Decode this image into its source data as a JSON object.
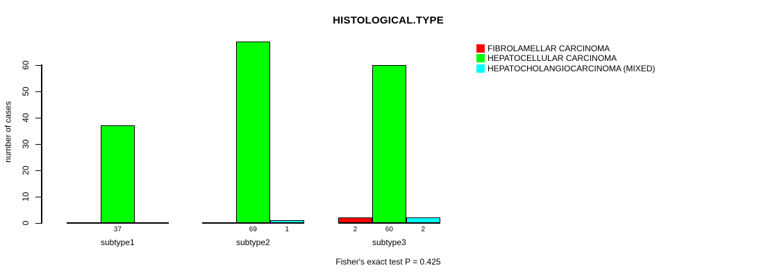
{
  "chart_data": {
    "type": "bar",
    "title": "HISTOLOGICAL.TYPE",
    "ylabel": "number of cases",
    "xlabel": "",
    "categories": [
      "subtype1",
      "subtype2",
      "subtype3"
    ],
    "series": [
      {
        "name": "FIBROLAMELLAR CARCINOMA",
        "color": "#ff0000",
        "values": [
          0,
          0,
          2
        ]
      },
      {
        "name": "HEPATOCELLULAR CARCINOMA",
        "color": "#00ff00",
        "values": [
          37,
          69,
          60
        ]
      },
      {
        "name": "HEPATOCHOLANGIOCARCINOMA (MIXED)",
        "color": "#00ffff",
        "values": [
          0,
          1,
          2
        ]
      }
    ],
    "yticks": [
      0,
      10,
      20,
      30,
      40,
      50,
      60
    ],
    "ylim": [
      0,
      69
    ],
    "grid": false,
    "legend_position": "right",
    "bar_value_labels": "non-zero values printed below baseline",
    "annotation": "Fisher's exact test P = 0.425",
    "axis_color": "#000000",
    "background": "#ffffff",
    "text_color": "#000000"
  }
}
